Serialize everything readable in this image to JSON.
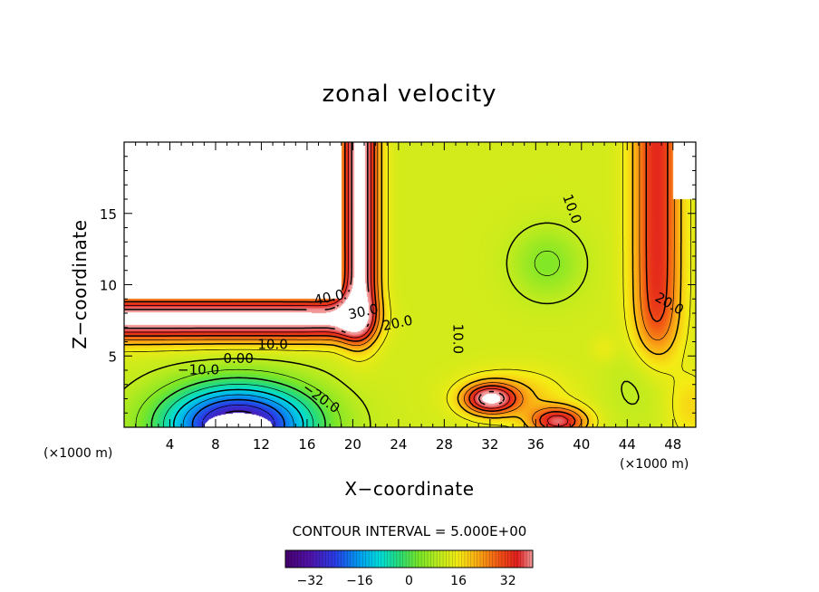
{
  "chart_data": {
    "type": "heatmap",
    "title": "zonal velocity",
    "xlabel": "X−coordinate",
    "ylabel": "Z−coordinate",
    "x_unit_label": "(×1000 m)",
    "x_unit_label_2": "(×1000 m)",
    "xlim": [
      0,
      50
    ],
    "ylim": [
      0,
      20
    ],
    "x_ticks": [
      4,
      8,
      12,
      16,
      20,
      24,
      28,
      32,
      36,
      40,
      44,
      48
    ],
    "x_tick_labels": [
      "4",
      "8",
      "12",
      "16",
      "20",
      "24",
      "28",
      "32",
      "36",
      "40",
      "44",
      "48"
    ],
    "y_ticks": [
      5,
      10,
      15
    ],
    "y_tick_labels": [
      "5",
      "10",
      "15"
    ],
    "contour_interval_text": "CONTOUR INTERVAL = 5.000E+00",
    "contour_labels": [
      {
        "text": "40.0",
        "x": 18,
        "y": 8.8
      },
      {
        "text": "30.0",
        "x": 21,
        "y": 7.8
      },
      {
        "text": "20.0",
        "x": 24,
        "y": 7.0
      },
      {
        "text": "10.0",
        "x": 13,
        "y": 5.5
      },
      {
        "text": "0.00",
        "x": 10,
        "y": 4.5
      },
      {
        "text": "−10.0",
        "x": 6.5,
        "y": 3.7
      },
      {
        "text": "−20.0",
        "x": 17,
        "y": 1.8
      },
      {
        "text": "10.0",
        "x": 28.8,
        "y": 6.2
      },
      {
        "text": "10.0",
        "x": 38.8,
        "y": 15.2
      },
      {
        "text": "20.0",
        "x": 47.5,
        "y": 8.4
      }
    ],
    "colorbar": {
      "min": -40,
      "max": 40,
      "ticks": [
        -32,
        -16,
        0,
        16,
        32
      ],
      "tick_labels": [
        "−32",
        "−16",
        "0",
        "16",
        "32"
      ]
    },
    "field_features": [
      {
        "kind": "jet",
        "xrange": [
          0,
          20
        ],
        "zcenter": 7.5,
        "peak": 45
      },
      {
        "kind": "jet",
        "xrange": [
          18,
          23
        ],
        "zcenter": 15,
        "peak": 45
      },
      {
        "kind": "jet",
        "xrange": [
          44,
          50
        ],
        "zcenter": 12,
        "peak": 35
      },
      {
        "kind": "negative_core",
        "x": 10,
        "z": 0.5,
        "peak": -35
      },
      {
        "kind": "positive_blob",
        "x": 32,
        "z": 2.0,
        "peak": 38
      },
      {
        "kind": "positive_blob",
        "x": 38,
        "z": 0.5,
        "peak": 38
      },
      {
        "kind": "minimum",
        "x": 37,
        "z": 11.5,
        "peak": 4
      }
    ]
  }
}
